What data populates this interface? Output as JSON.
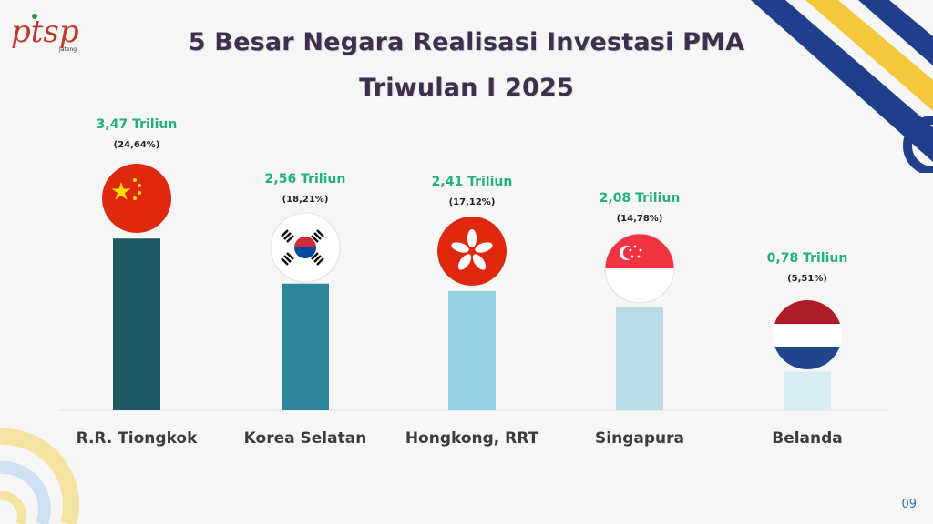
{
  "logo": {
    "text": "ptsp",
    "subtext": "Jateng"
  },
  "title": {
    "line1": "5 Besar Negara Realisasi Investasi PMA",
    "line2": "Triwulan I 2025"
  },
  "page_number": "09",
  "colors": {
    "bar_tiongkok": "#1f5763",
    "bar_korea": "#2e869c",
    "bar_hongkong": "#96cfdd",
    "bar_singapura": "#b8dde7",
    "bar_belanda": "#d9eef3",
    "value_text": "#25b07a",
    "title_text": "#3d2f4d"
  },
  "chart_data": {
    "type": "bar",
    "title": "5 Besar Negara Realisasi Investasi PMA Triwulan I 2025",
    "unit": "Triliun",
    "categories": [
      "R.R. Tiongkok",
      "Korea Selatan",
      "Hongkong, RRT",
      "Singapura",
      "Belanda"
    ],
    "values": [
      3.47,
      2.56,
      2.41,
      2.08,
      0.78
    ],
    "value_labels": [
      "3,47 Triliun",
      "2,56 Triliun",
      "2,41 Triliun",
      "2,08 Triliun",
      "0,78 Triliun"
    ],
    "percent_labels": [
      "(24,64%)",
      "(18,21%)",
      "(17,12%)",
      "(14,78%)",
      "(5,51%)"
    ],
    "flags": [
      "china-flag-icon",
      "south-korea-flag-icon",
      "hong-kong-flag-icon",
      "singapore-flag-icon",
      "netherlands-flag-icon"
    ],
    "grid": false,
    "legend": "none"
  }
}
